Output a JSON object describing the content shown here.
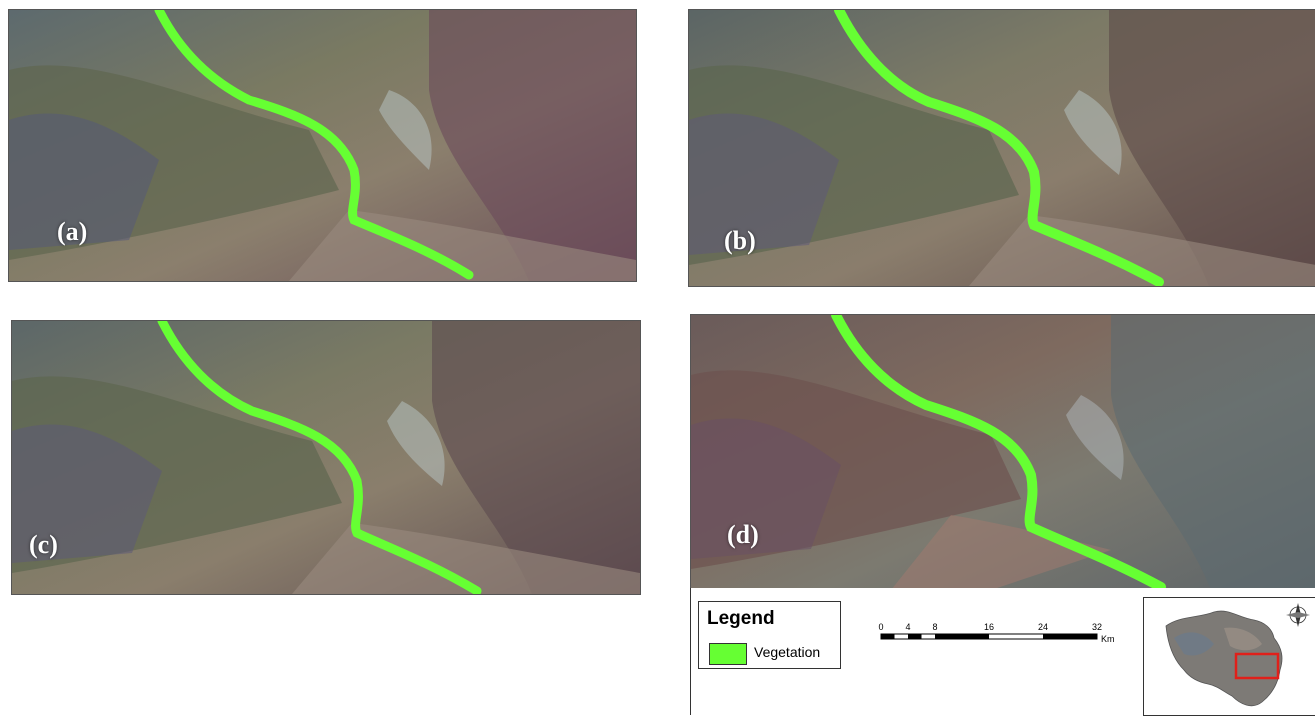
{
  "panels": [
    {
      "id": "a",
      "label": "(a)",
      "tone": "#6f6d5a"
    },
    {
      "id": "b",
      "label": "(b)",
      "tone": "#6d6a5c"
    },
    {
      "id": "c",
      "label": "(c)",
      "tone": "#6f6c5c"
    },
    {
      "id": "d",
      "label": "(d)",
      "tone": "#6a5f57"
    }
  ],
  "legend": {
    "title": "Legend",
    "items": [
      {
        "label": "Vegetation",
        "color": "#66ff33"
      }
    ]
  },
  "scalebar": {
    "ticks": [
      "0",
      "4",
      "8",
      "16",
      "24",
      "32"
    ],
    "unit": "Km"
  },
  "colors": {
    "vegetation": "#66ff33",
    "study_area_box": "#e0201a"
  }
}
